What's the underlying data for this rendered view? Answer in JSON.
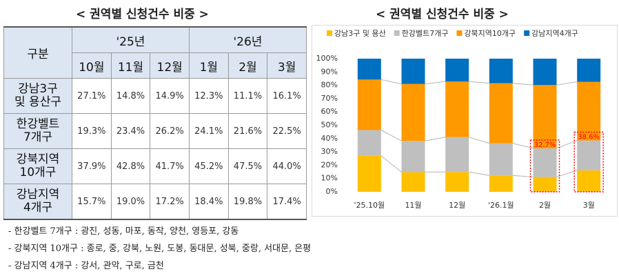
{
  "table": {
    "title": "< 권역별 신청건수 비중 >",
    "header": {
      "label": "구분",
      "years": [
        "'25년",
        "'26년"
      ],
      "months": [
        "10월",
        "11월",
        "12월",
        "1월",
        "2월",
        "3월"
      ]
    },
    "rows": [
      [
        "강남3구\n및 용산구",
        "27.1%",
        "14.8%",
        "14.9%",
        "12.3%",
        "11.1%",
        "16.1%"
      ],
      [
        "한강벨트\n7개구",
        "19.3%",
        "23.4%",
        "26.2%",
        "24.1%",
        "21.6%",
        "22.5%"
      ],
      [
        "강북지역\n10개구",
        "37.9%",
        "42.8%",
        "41.7%",
        "45.2%",
        "47.5%",
        "44.0%"
      ],
      [
        "강남지역\n4개구",
        "15.7%",
        "19.0%",
        "17.2%",
        "18.4%",
        "19.8%",
        "17.4%"
      ]
    ]
  },
  "notes": [
    "- 한강벨트 7개구 : 광진, 성동, 마포, 동작, 양천, 영등포, 강동",
    "- 강북지역 10개구 : 종로, 중, 강북, 노원, 도봉, 동대문, 성북, 중랑, 서대문, 은평",
    "- 강남지역 4개구 : 강서, 관악, 구로, 금천"
  ],
  "chart_data": {
    "type": "bar",
    "stacked": true,
    "title": "< 권역별 신청건수 비중 >",
    "categories": [
      "'25.10월",
      "11월",
      "12월",
      "'26.1월",
      "2월",
      "3월"
    ],
    "series": [
      {
        "name": "강남3구 및 용산",
        "color": "#ffc000",
        "values": [
          27.1,
          14.8,
          14.9,
          12.3,
          11.1,
          16.1
        ]
      },
      {
        "name": "한강벨트7개구",
        "color": "#bfbfbf",
        "values": [
          19.3,
          23.4,
          26.2,
          24.1,
          21.6,
          22.5
        ]
      },
      {
        "name": "강북지역10개구",
        "color": "#ff9900",
        "values": [
          37.9,
          42.8,
          41.7,
          45.2,
          47.5,
          44.0
        ]
      },
      {
        "name": "강남지역4개구",
        "color": "#0070c0",
        "values": [
          15.7,
          19.0,
          17.2,
          18.4,
          19.8,
          17.4
        ]
      }
    ],
    "ylim": [
      0,
      100
    ],
    "yticks": [
      {
        "value": 0,
        "label": "0%"
      },
      {
        "value": 10,
        "label": "10%"
      },
      {
        "value": 20,
        "label": "20%"
      },
      {
        "value": 30,
        "label": "30%"
      },
      {
        "value": 40,
        "label": "40%"
      },
      {
        "value": 50,
        "label": "50%"
      },
      {
        "value": 60,
        "label": "60%"
      },
      {
        "value": 70,
        "label": "70%"
      },
      {
        "value": 80,
        "label": "80%"
      },
      {
        "value": 90,
        "label": "90%"
      },
      {
        "value": 100,
        "label": "100%"
      }
    ],
    "legend_position": "top",
    "annotations": [
      {
        "category": "2월",
        "value": 32.7,
        "label": "32.7%",
        "color": "#ff0000"
      },
      {
        "category": "3월",
        "value": 38.6,
        "label": "38.6%",
        "color": "#ff0000"
      }
    ]
  }
}
